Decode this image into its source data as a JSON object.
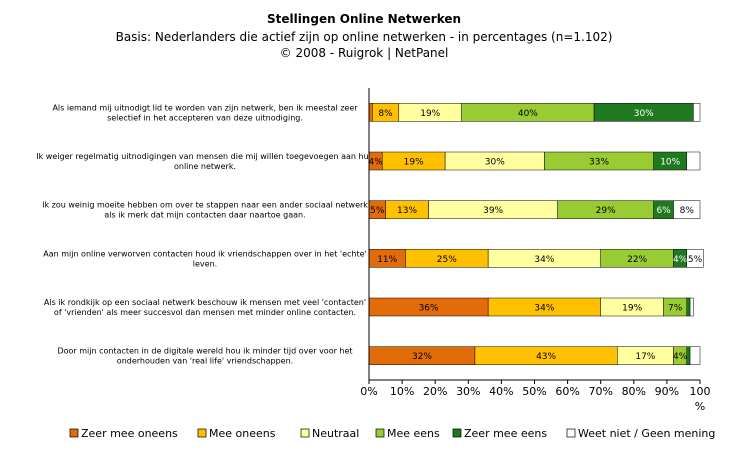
{
  "chart_data": {
    "type": "bar",
    "stacked": true,
    "orientation": "horizontal",
    "title": "Stellingen Online Netwerken",
    "subtitle": "Basis: Nederlanders die actief zijn op online netwerken - in percentages (n=1.102)",
    "source": "©  2008 - Ruigrok | NetPanel",
    "xlim": [
      0,
      100
    ],
    "xticks": [
      "0%",
      "10%",
      "20%",
      "30%",
      "40%",
      "50%",
      "60%",
      "70%",
      "80%",
      "90%",
      "100"
    ],
    "xunit": "%",
    "grid": false,
    "legend_position": "bottom",
    "categories": [
      "Als iemand mij uitnodigt lid te worden van zijn netwerk, ben ik meestal zeer selectief in het accepteren van deze uitnodiging.",
      "Ik weiger regelmatig uitnodigingen van mensen die mij willen toegevoegen aan hun online netwerk.",
      "Ik zou weinig moeite hebben om over te stappen naar een ander sociaal netwerk als ik merk dat mijn contacten daar naartoe gaan.",
      "Aan mijn online verworven contacten houd ik vriendschappen over in het 'echte' leven.",
      "Als ik rondkijk op een sociaal netwerk beschouw ik mensen met veel 'contacten' of 'vrienden' als meer succesvol dan mensen met minder online contacten.",
      "Door mijn contacten in de digitale wereld hou ik minder tijd over voor het onderhouden van 'real life' vriendschappen."
    ],
    "series": [
      {
        "name": "Zeer mee oneens",
        "color": "#e36c0a",
        "values": [
          1,
          4,
          5,
          11,
          36,
          32
        ],
        "labels": [
          "",
          "4%",
          "5%",
          "11%",
          "36%",
          "32%"
        ]
      },
      {
        "name": "Mee oneens",
        "color": "#ffc000",
        "values": [
          8,
          19,
          13,
          25,
          34,
          43
        ],
        "labels": [
          "8%",
          "19%",
          "13%",
          "25%",
          "34%",
          "43%"
        ]
      },
      {
        "name": "Neutraal",
        "color": "#ffffa0",
        "values": [
          19,
          30,
          39,
          34,
          19,
          17
        ],
        "labels": [
          "19%",
          "30%",
          "39%",
          "34%",
          "19%",
          "17%"
        ]
      },
      {
        "name": "Mee eens",
        "color": "#99cc33",
        "values": [
          40,
          33,
          29,
          22,
          7,
          4
        ],
        "labels": [
          "40%",
          "33%",
          "29%",
          "22%",
          "7%",
          "4%"
        ]
      },
      {
        "name": "Zeer mee eens",
        "color": "#1f7a1f",
        "values": [
          30,
          10,
          6,
          4,
          1,
          1
        ],
        "labels": [
          "30%",
          "10%",
          "6%",
          "4%",
          "",
          ""
        ]
      },
      {
        "name": "Weet niet / Geen mening",
        "color": "#ffffff",
        "values": [
          2,
          4,
          8,
          5,
          1,
          3
        ],
        "labels": [
          "",
          "",
          "8%",
          "5%",
          "",
          ""
        ]
      }
    ]
  }
}
